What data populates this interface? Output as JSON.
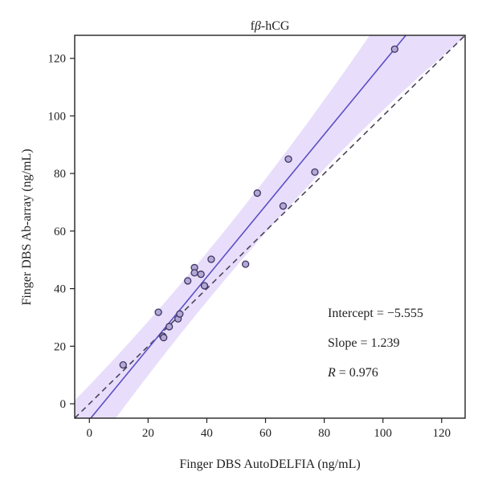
{
  "chart_data": {
    "type": "scatter",
    "title": "fβ-hCG",
    "title_prefix": "f",
    "title_greek": "β",
    "title_suffix": "-hCG",
    "xlabel": "Finger DBS AutoDELFIA (ng/mL)",
    "ylabel": "Finger DBS Ab-array (ng/mL)",
    "xlim": [
      -5,
      128
    ],
    "ylim": [
      -5,
      128
    ],
    "xticks": [
      0,
      20,
      40,
      60,
      80,
      100,
      120
    ],
    "yticks": [
      0,
      20,
      40,
      60,
      80,
      100,
      120
    ],
    "grid": false,
    "points": [
      {
        "x": 11.5,
        "y": 13.5
      },
      {
        "x": 23.5,
        "y": 31.8
      },
      {
        "x": 25.0,
        "y": 23.5
      },
      {
        "x": 25.3,
        "y": 23.0
      },
      {
        "x": 27.2,
        "y": 26.8
      },
      {
        "x": 30.2,
        "y": 29.5
      },
      {
        "x": 30.8,
        "y": 31.2
      },
      {
        "x": 33.5,
        "y": 42.7
      },
      {
        "x": 35.8,
        "y": 47.3
      },
      {
        "x": 35.8,
        "y": 45.5
      },
      {
        "x": 38.0,
        "y": 45.0
      },
      {
        "x": 39.2,
        "y": 41.0
      },
      {
        "x": 41.5,
        "y": 50.2
      },
      {
        "x": 53.2,
        "y": 48.5
      },
      {
        "x": 57.2,
        "y": 73.2
      },
      {
        "x": 66.0,
        "y": 68.7
      },
      {
        "x": 67.8,
        "y": 85.0
      },
      {
        "x": 76.8,
        "y": 80.5
      },
      {
        "x": 104.0,
        "y": 123.2
      }
    ],
    "regression": {
      "intercept": -5.555,
      "slope": 1.239
    },
    "identity_line": true,
    "confidence_band": true,
    "colors": {
      "band": "#e8defb",
      "regression_line": "#5b4fc4",
      "identity_line": "#4a4458",
      "point_fill": "#b3a7d6",
      "point_stroke": "#3e3560"
    },
    "annotations": {
      "intercept_text": "Intercept = −5.555",
      "slope_text": "Slope = 1.239",
      "r_label": "R",
      "r_value_text": " = 0.976"
    }
  }
}
